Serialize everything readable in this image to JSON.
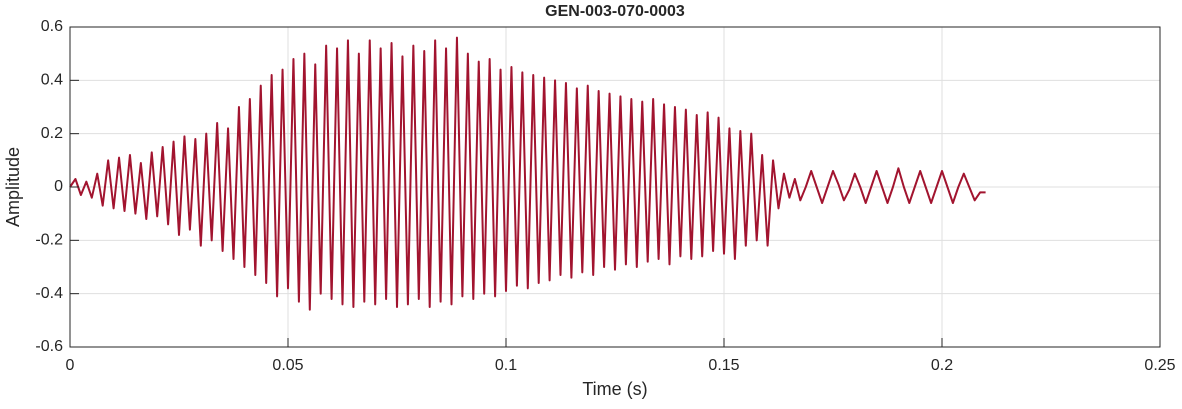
{
  "chart_data": {
    "type": "line",
    "title": "GEN-003-070-0003",
    "x_label": "Time (s)",
    "y_label": "Amplitude",
    "grid": true,
    "xlim": [
      0,
      0.25
    ],
    "ylim": [
      -0.6,
      0.6
    ],
    "xticks": [
      0,
      0.05,
      0.1,
      0.15,
      0.2,
      0.25
    ],
    "yticks": [
      -0.6,
      -0.4,
      -0.2,
      0,
      0.2,
      0.4,
      0.6
    ],
    "x": [
      0,
      0.00125,
      0.0025,
      0.00375,
      0.005,
      0.00625,
      0.0075,
      0.00875,
      0.01,
      0.01125,
      0.0125,
      0.01375,
      0.015,
      0.01625,
      0.0175,
      0.01875,
      0.02,
      0.02125,
      0.0225,
      0.02375,
      0.025,
      0.02625,
      0.0275,
      0.02875,
      0.03,
      0.03125,
      0.0325,
      0.03375,
      0.035,
      0.03625,
      0.0375,
      0.03875,
      0.04,
      0.04125,
      0.0425,
      0.04375,
      0.045,
      0.04625,
      0.0475,
      0.04875,
      0.05,
      0.05125,
      0.0525,
      0.05375,
      0.055,
      0.05625,
      0.0575,
      0.05875,
      0.06,
      0.06125,
      0.0625,
      0.06375,
      0.065,
      0.06625,
      0.0675,
      0.06875,
      0.07,
      0.07125,
      0.0725,
      0.07375,
      0.075,
      0.07625,
      0.0775,
      0.07875,
      0.08,
      0.08125,
      0.0825,
      0.08375,
      0.085,
      0.08625,
      0.0875,
      0.08875,
      0.09,
      0.09125,
      0.0925,
      0.09375,
      0.095,
      0.09625,
      0.0975,
      0.09875,
      0.1,
      0.10125,
      0.1025,
      0.10375,
      0.105,
      0.10625,
      0.1075,
      0.10875,
      0.11,
      0.11125,
      0.1125,
      0.11375,
      0.115,
      0.11625,
      0.1175,
      0.11875,
      0.12,
      0.12125,
      0.1225,
      0.12375,
      0.125,
      0.12625,
      0.1275,
      0.12875,
      0.13,
      0.13125,
      0.1325,
      0.13375,
      0.135,
      0.13625,
      0.1375,
      0.13875,
      0.14,
      0.14125,
      0.1425,
      0.14375,
      0.145,
      0.14625,
      0.1475,
      0.14875,
      0.15,
      0.15125,
      0.1525,
      0.15375,
      0.155,
      0.15625,
      0.1575,
      0.15875,
      0.16,
      0.16125,
      0.1625,
      0.16375,
      0.165,
      0.16625,
      0.1675,
      0.16875,
      0.17,
      0.17125,
      0.1725,
      0.17375,
      0.175,
      0.17625,
      0.1775,
      0.17875,
      0.18,
      0.18125,
      0.1825,
      0.18375,
      0.185,
      0.18625,
      0.1875,
      0.18875,
      0.19,
      0.19125,
      0.1925,
      0.19375,
      0.195,
      0.19625,
      0.1975,
      0.19875,
      0.2,
      0.20125,
      0.2025,
      0.20375,
      0.205,
      0.20625,
      0.2075,
      0.20875,
      0.21
    ],
    "series": [
      {
        "color": "#a2142f",
        "values": [
          0,
          0.03,
          -0.03,
          0.02,
          -0.04,
          0.05,
          -0.07,
          0.1,
          -0.08,
          0.11,
          -0.09,
          0.12,
          -0.1,
          0.09,
          -0.12,
          0.13,
          -0.11,
          0.15,
          -0.14,
          0.17,
          -0.18,
          0.19,
          -0.16,
          0.18,
          -0.22,
          0.2,
          -0.2,
          0.24,
          -0.24,
          0.22,
          -0.27,
          0.3,
          -0.3,
          0.33,
          -0.33,
          0.38,
          -0.36,
          0.42,
          -0.41,
          0.44,
          -0.38,
          0.48,
          -0.43,
          0.5,
          -0.46,
          0.46,
          -0.4,
          0.53,
          -0.42,
          0.52,
          -0.44,
          0.55,
          -0.45,
          0.5,
          -0.43,
          0.55,
          -0.44,
          0.52,
          -0.42,
          0.54,
          -0.45,
          0.49,
          -0.44,
          0.53,
          -0.42,
          0.51,
          -0.45,
          0.55,
          -0.43,
          0.52,
          -0.44,
          0.56,
          -0.41,
          0.5,
          -0.42,
          0.47,
          -0.4,
          0.48,
          -0.41,
          0.44,
          -0.39,
          0.45,
          -0.37,
          0.43,
          -0.38,
          0.42,
          -0.36,
          0.41,
          -0.35,
          0.4,
          -0.33,
          0.39,
          -0.34,
          0.37,
          -0.32,
          0.38,
          -0.33,
          0.36,
          -0.3,
          0.35,
          -0.31,
          0.34,
          -0.29,
          0.33,
          -0.3,
          0.32,
          -0.28,
          0.33,
          -0.27,
          0.31,
          -0.29,
          0.3,
          -0.26,
          0.29,
          -0.27,
          0.27,
          -0.26,
          0.28,
          -0.24,
          0.26,
          -0.25,
          0.22,
          -0.27,
          0.21,
          -0.22,
          0.2,
          -0.2,
          0.12,
          -0.22,
          0.1,
          -0.08,
          0.05,
          -0.04,
          0.03,
          -0.05,
          0,
          0.06,
          0,
          -0.06,
          0,
          0.06,
          0.01,
          -0.05,
          -0.01,
          0.05,
          0,
          -0.06,
          0,
          0.06,
          0,
          -0.06,
          0,
          0.07,
          0,
          -0.06,
          0,
          0.06,
          0,
          -0.06,
          0,
          0.06,
          0,
          -0.06,
          0,
          0.05,
          0,
          -0.05,
          -0.02,
          -0.02
        ]
      }
    ]
  }
}
